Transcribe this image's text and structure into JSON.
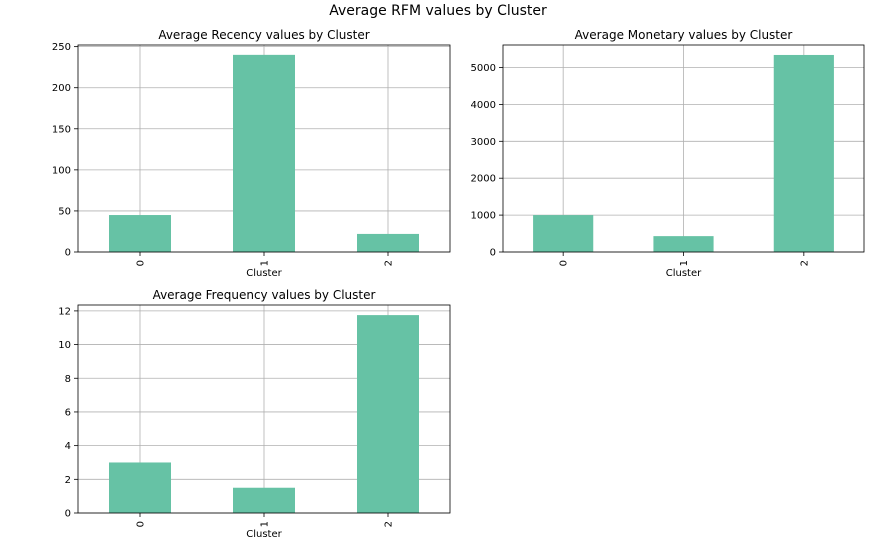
{
  "figure": {
    "suptitle": "Average RFM values by Cluster"
  },
  "style": {
    "bar_color": "#66c2a5",
    "grid_color": "#b0b0b0",
    "axis_color": "#000000"
  },
  "chart_data": [
    {
      "type": "bar",
      "title": "Average Recency values by Cluster",
      "xlabel": "Cluster",
      "ylabel": "",
      "categories": [
        "0",
        "1",
        "2"
      ],
      "values": [
        45,
        240,
        22
      ],
      "ylim": [
        0,
        252
      ],
      "yticks": [
        0,
        50,
        100,
        150,
        200,
        250
      ],
      "grid": true,
      "legend": "none"
    },
    {
      "type": "bar",
      "title": "Average Monetary values by Cluster",
      "xlabel": "Cluster",
      "ylabel": "",
      "categories": [
        "0",
        "1",
        "2"
      ],
      "values": [
        1000,
        430,
        5340
      ],
      "ylim": [
        0,
        5610
      ],
      "yticks": [
        0,
        1000,
        2000,
        3000,
        4000,
        5000
      ],
      "grid": true,
      "legend": "none"
    },
    {
      "type": "bar",
      "title": "Average Frequency values by Cluster",
      "xlabel": "Cluster",
      "ylabel": "",
      "categories": [
        "0",
        "1",
        "2"
      ],
      "values": [
        3.0,
        1.5,
        11.75
      ],
      "ylim": [
        0,
        12.35
      ],
      "yticks": [
        0,
        2,
        4,
        6,
        8,
        10,
        12
      ],
      "grid": true,
      "legend": "none"
    }
  ]
}
